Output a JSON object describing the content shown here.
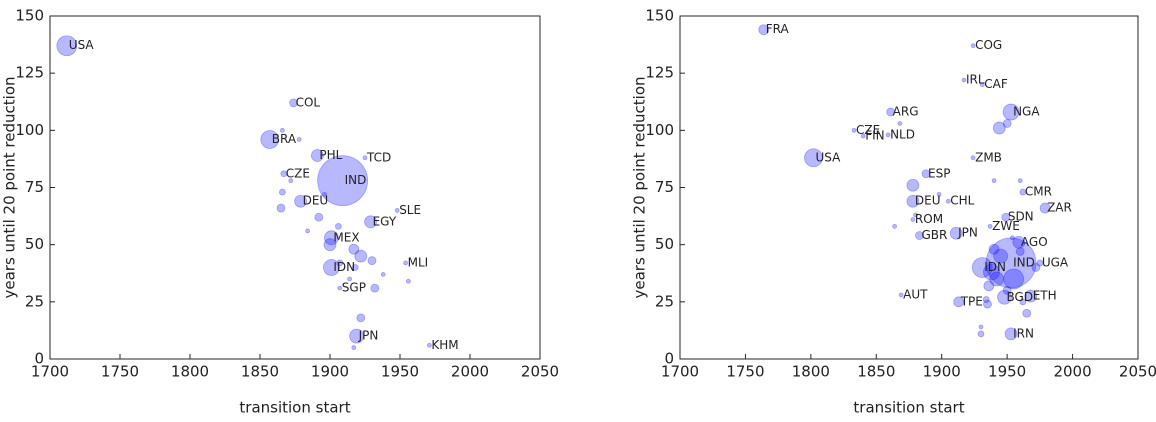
{
  "chart_data": [
    {
      "type": "scatter",
      "x_label": "transition start",
      "y_label": "years until 20 point reduction",
      "xlim": [
        1700,
        2050
      ],
      "ylim": [
        0,
        150
      ],
      "xticks": [
        1700,
        1750,
        1800,
        1850,
        1900,
        1950,
        2000,
        2050
      ],
      "yticks": [
        0,
        25,
        50,
        75,
        100,
        125,
        150
      ],
      "color": "#0000ff",
      "labels": [
        "USA",
        "COL",
        "BRA",
        "PHL",
        "CZE",
        "IND",
        "TCD",
        "DEU",
        "SLE",
        "EGY",
        "MEX",
        "IDN",
        "MLI",
        "SGP",
        "JPN",
        "KHM",
        null,
        null,
        null,
        null,
        null,
        null,
        null,
        null,
        null,
        null,
        null,
        null,
        null,
        null,
        null,
        null,
        null,
        null,
        null,
        null,
        null
      ],
      "x": [
        1712,
        1874,
        1857,
        1891,
        1867,
        1909,
        1925,
        1879,
        1948,
        1929,
        1901,
        1901,
        1954,
        1907,
        1919,
        1971,
        1866,
        1878,
        1866,
        1865,
        1872,
        1892,
        1900,
        1906,
        1917,
        1907,
        1922,
        1914,
        1932,
        1930,
        1918,
        1938,
        1956,
        1922,
        1917,
        1896,
        1884
      ],
      "y": [
        137,
        112,
        96,
        89,
        81,
        78,
        88,
        69,
        65,
        60,
        53,
        40,
        42,
        31,
        10,
        6,
        100,
        96,
        73,
        66,
        78,
        62,
        50,
        58,
        48,
        42,
        45,
        35,
        31,
        43,
        40,
        37,
        34,
        18,
        5,
        72,
        56
      ],
      "sizes": [
        100,
        16,
        81,
        36,
        9,
        625,
        4,
        36,
        4,
        36,
        49,
        64,
        4,
        4,
        49,
        4,
        4,
        4,
        9,
        16,
        4,
        16,
        36,
        9,
        25,
        9,
        36,
        4,
        16,
        16,
        9,
        4,
        4,
        16,
        4,
        4,
        4
      ]
    },
    {
      "type": "scatter",
      "x_label": "transition start",
      "y_label": "years until 20 point reduction",
      "xlim": [
        1700,
        2050
      ],
      "ylim": [
        0,
        150
      ],
      "xticks": [
        1700,
        1750,
        1800,
        1850,
        1900,
        1950,
        2000,
        2050
      ],
      "yticks": [
        0,
        25,
        50,
        75,
        100,
        125,
        150
      ],
      "color": "#0000ff",
      "labels": [
        "FRA",
        "COG",
        "IRL",
        "CAF",
        "ARG",
        "NGA",
        "CZE",
        "FIN",
        "NLD",
        "USA",
        "ZMB",
        "ESP",
        "CMR",
        "DEU",
        "CHL",
        "ZAR",
        "ROM",
        "SDN",
        "ZWE",
        "GBR",
        "JPN",
        "AGO",
        "IND",
        "IDN",
        "UGA",
        "ETH",
        "BGD",
        "TPE",
        "AUT",
        "IRN",
        null,
        null,
        null,
        null,
        null,
        null,
        null,
        null,
        null,
        null,
        null,
        null,
        null,
        null,
        null,
        null,
        null,
        null,
        null,
        null,
        null,
        null,
        null,
        null,
        null
      ],
      "x": [
        1764,
        1924,
        1917,
        1931,
        1861,
        1953,
        1833,
        1840,
        1859,
        1802,
        1924,
        1888,
        1962,
        1878,
        1905,
        1979,
        1878,
        1949,
        1937,
        1883,
        1911,
        1959,
        1953,
        1931,
        1975,
        1968,
        1948,
        1913,
        1869,
        1953,
        1868,
        1878,
        1880,
        1864,
        1898,
        1940,
        1950,
        1944,
        1960,
        1940,
        1945,
        1938,
        1936,
        1942,
        1955,
        1960,
        1972,
        1935,
        1934,
        1950,
        1965,
        1930,
        1930,
        1962,
        1954
      ],
      "y": [
        144,
        137,
        122,
        120,
        108,
        108,
        100,
        97.5,
        98,
        88,
        88,
        81,
        73,
        69,
        69,
        66,
        61,
        62,
        58,
        54,
        55,
        51,
        42,
        40,
        42,
        27.5,
        27,
        25,
        28,
        11,
        103,
        76,
        63,
        58,
        72,
        78,
        103,
        101,
        78,
        48,
        45,
        38,
        32,
        35,
        35,
        47,
        40,
        24,
        26,
        30,
        20,
        14,
        11,
        25,
        53
      ],
      "sizes": [
        25,
        4,
        4,
        4,
        16,
        64,
        4,
        4,
        4,
        81,
        4,
        16,
        9,
        36,
        4,
        25,
        4,
        16,
        4,
        16,
        36,
        36,
        625,
        100,
        9,
        36,
        49,
        25,
        4,
        36,
        4,
        36,
        4,
        4,
        4,
        4,
        16,
        36,
        4,
        25,
        49,
        64,
        25,
        49,
        100,
        16,
        16,
        16,
        9,
        16,
        16,
        4,
        9,
        9,
        4
      ]
    }
  ]
}
